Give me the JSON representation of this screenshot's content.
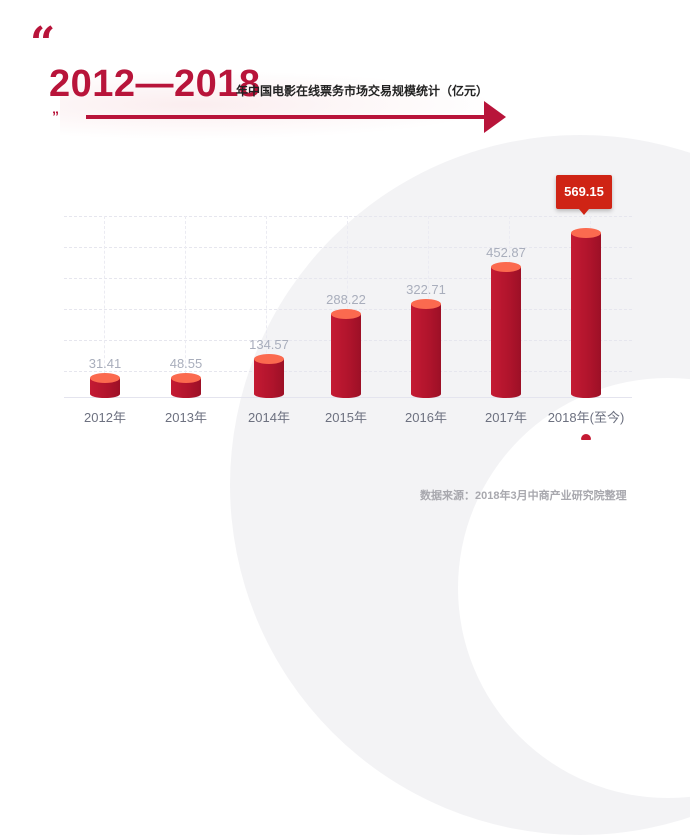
{
  "header": {
    "quote_open": "“",
    "title_years": "2012—2018",
    "title_rest": "年中国电影在线票务市场交易规模统计（亿元）",
    "quote_close": "”"
  },
  "colors": {
    "accent": "#b8143a",
    "bar_body": "#b0142c",
    "bar_top": "#fb6a4f",
    "callout": "#cf2415",
    "value_label": "#a9aebc",
    "axis_label": "#6d7180"
  },
  "chart_data": {
    "type": "bar",
    "title": "2012—2018年中国电影在线票务市场交易规模统计（亿元）",
    "xlabel": "",
    "ylabel": "亿元",
    "categories": [
      "2012年",
      "2013年",
      "2014年",
      "2015年",
      "2016年",
      "2017年",
      "2018年(至今)"
    ],
    "values": [
      31.41,
      48.55,
      134.57,
      288.22,
      322.71,
      452.87,
      569.15
    ],
    "value_labels": [
      "31.41",
      "48.55",
      "134.57",
      "288.22",
      "322.71",
      "452.87",
      "569.15"
    ],
    "highlighted": {
      "category": "2018年(至今)",
      "label": "569.15"
    },
    "grid": true,
    "legend": null,
    "bar_style": "cylinder"
  },
  "footer": {
    "source": "数据来源：2018年3月中商产业研究院整理"
  }
}
